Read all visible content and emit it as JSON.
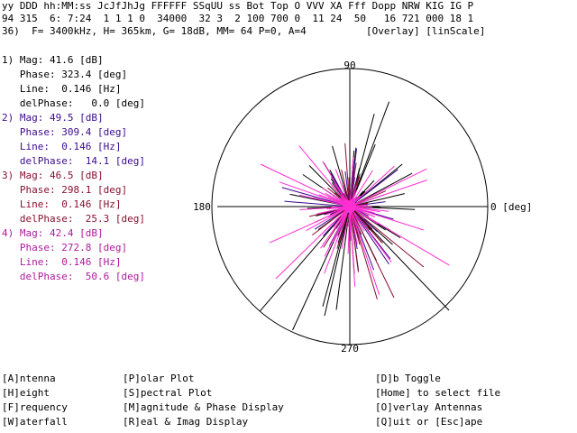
{
  "header": {
    "line1": "yy DDD hh:MM:ss JcJfJhJg FFFFFF SSqUU ss Bot Top O VVV XA Fff Dopp NRW KIG IG P",
    "line2": "94 315  6: 7:24  1 1 1 0  34000  32 3  2 100 700 0  11 24  50   16 721 000 18 1",
    "line3": "36)  F= 3400kHz, H= 365km, G= 18dB, MM= 64 P=0, A=4          [Overlay] [linScale]"
  },
  "antennas": [
    {
      "label": "1) Mag: 41.6 [dB]",
      "phase": "   Phase: 323.4 [deg]",
      "line": "   Line:  0.146 [Hz]",
      "delphase": "   delPhase:   0.0 [deg]",
      "color": "#000000"
    },
    {
      "label": "2) Mag: 49.5 [dB]",
      "phase": "   Phase: 309.4 [deg]",
      "line": "   Line:  0.146 [Hz]",
      "delphase": "   delPhase:  14.1 [deg]",
      "color": "#3b0a8f"
    },
    {
      "label": "3) Mag: 46.5 [dB]",
      "phase": "   Phase: 298.1 [deg]",
      "line": "   Line:  0.146 [Hz]",
      "delphase": "   delPhase:  25.3 [deg]",
      "color": "#8a1030"
    },
    {
      "label": "4) Mag: 42.4 [dB]",
      "phase": "   Phase: 272.8 [deg]",
      "line": "   Line:  0.146 [Hz]",
      "delphase": "   delPhase:  50.6 [deg]",
      "color": "#b0199e"
    }
  ],
  "polar": {
    "top_label": "90",
    "left_label": "180",
    "right_label": "0 [deg]",
    "bottom_label": "270"
  },
  "menu": {
    "col1": [
      "[A]ntenna",
      "[H]eight",
      "[F]requency",
      "[W]aterfall"
    ],
    "col2": [
      "[P]olar Plot",
      "[S]pectral Plot",
      "[M]agnitude & Phase Display",
      "[R]eal & Imag Display"
    ],
    "col3": [
      "[D]b Toggle",
      "[Home] to select file",
      "[O]verlay Antennas",
      "[Q]uit or [Esc]ape"
    ]
  }
}
